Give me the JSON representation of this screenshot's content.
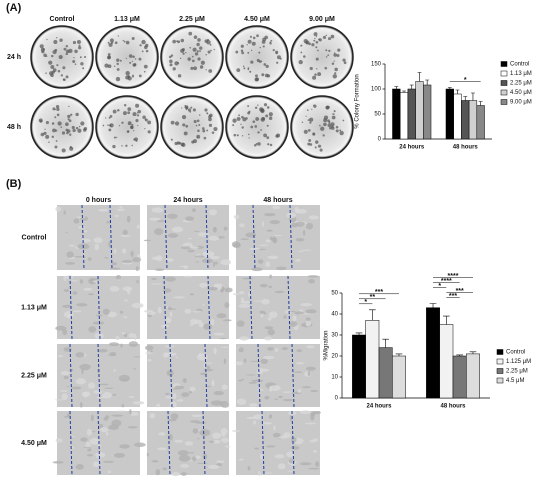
{
  "panel_a": {
    "label": "(A)",
    "columns": [
      "Control",
      "1.13 μM",
      "2.25 μM",
      "4.50 μM",
      "9.00 μM"
    ],
    "rows": [
      "24 h",
      "48 h"
    ]
  },
  "panel_b": {
    "label": "(B)",
    "columns": [
      "0 hours",
      "24 hours",
      "48 hours"
    ],
    "rows": [
      "Control",
      "1.13 μM",
      "2.25 μM",
      "4.50 μM"
    ]
  },
  "chart_data": [
    {
      "type": "bar",
      "ylabel": "% Colony Formation",
      "categories": [
        "24 hours",
        "48 hours"
      ],
      "ylim": [
        0,
        150
      ],
      "yticks": [
        0,
        50,
        100,
        150
      ],
      "series": [
        {
          "name": "Control",
          "color": "#000000",
          "values": [
            100,
            100
          ],
          "errors": [
            5,
            3
          ]
        },
        {
          "name": "1.13 μM",
          "color": "#ffffff",
          "values": [
            93,
            90
          ],
          "errors": [
            3,
            8
          ]
        },
        {
          "name": "2.25 μM",
          "color": "#555555",
          "values": [
            100,
            77
          ],
          "errors": [
            8,
            8
          ]
        },
        {
          "name": "4.50 μM",
          "color": "#d0d0d0",
          "values": [
            115,
            77
          ],
          "errors": [
            18,
            15
          ]
        },
        {
          "name": "9.00 μM",
          "color": "#888888",
          "values": [
            108,
            67
          ],
          "errors": [
            10,
            8
          ]
        }
      ],
      "significance": [
        [],
        [
          "*"
        ]
      ]
    },
    {
      "type": "bar",
      "ylabel": "%Migration",
      "categories": [
        "24 hours",
        "48 hours"
      ],
      "ylim": [
        0,
        50
      ],
      "yticks": [
        0,
        10,
        20,
        30,
        40,
        50
      ],
      "series": [
        {
          "name": "Control",
          "color": "#000000",
          "values": [
            30,
            43
          ],
          "errors": [
            1,
            2
          ]
        },
        {
          "name": "1.125 μM",
          "color": "#f2f2f2",
          "values": [
            37,
            35
          ],
          "errors": [
            5,
            4
          ]
        },
        {
          "name": "2.25 μM",
          "color": "#777777",
          "values": [
            24,
            20
          ],
          "errors": [
            4,
            0.5
          ]
        },
        {
          "name": "4.5 μM",
          "color": "#dddddd",
          "values": [
            20,
            21
          ],
          "errors": [
            1,
            1
          ]
        }
      ],
      "significance": [
        [
          "***",
          "**",
          "*"
        ],
        [
          "****",
          "****",
          "*",
          "***",
          "***"
        ]
      ]
    }
  ]
}
